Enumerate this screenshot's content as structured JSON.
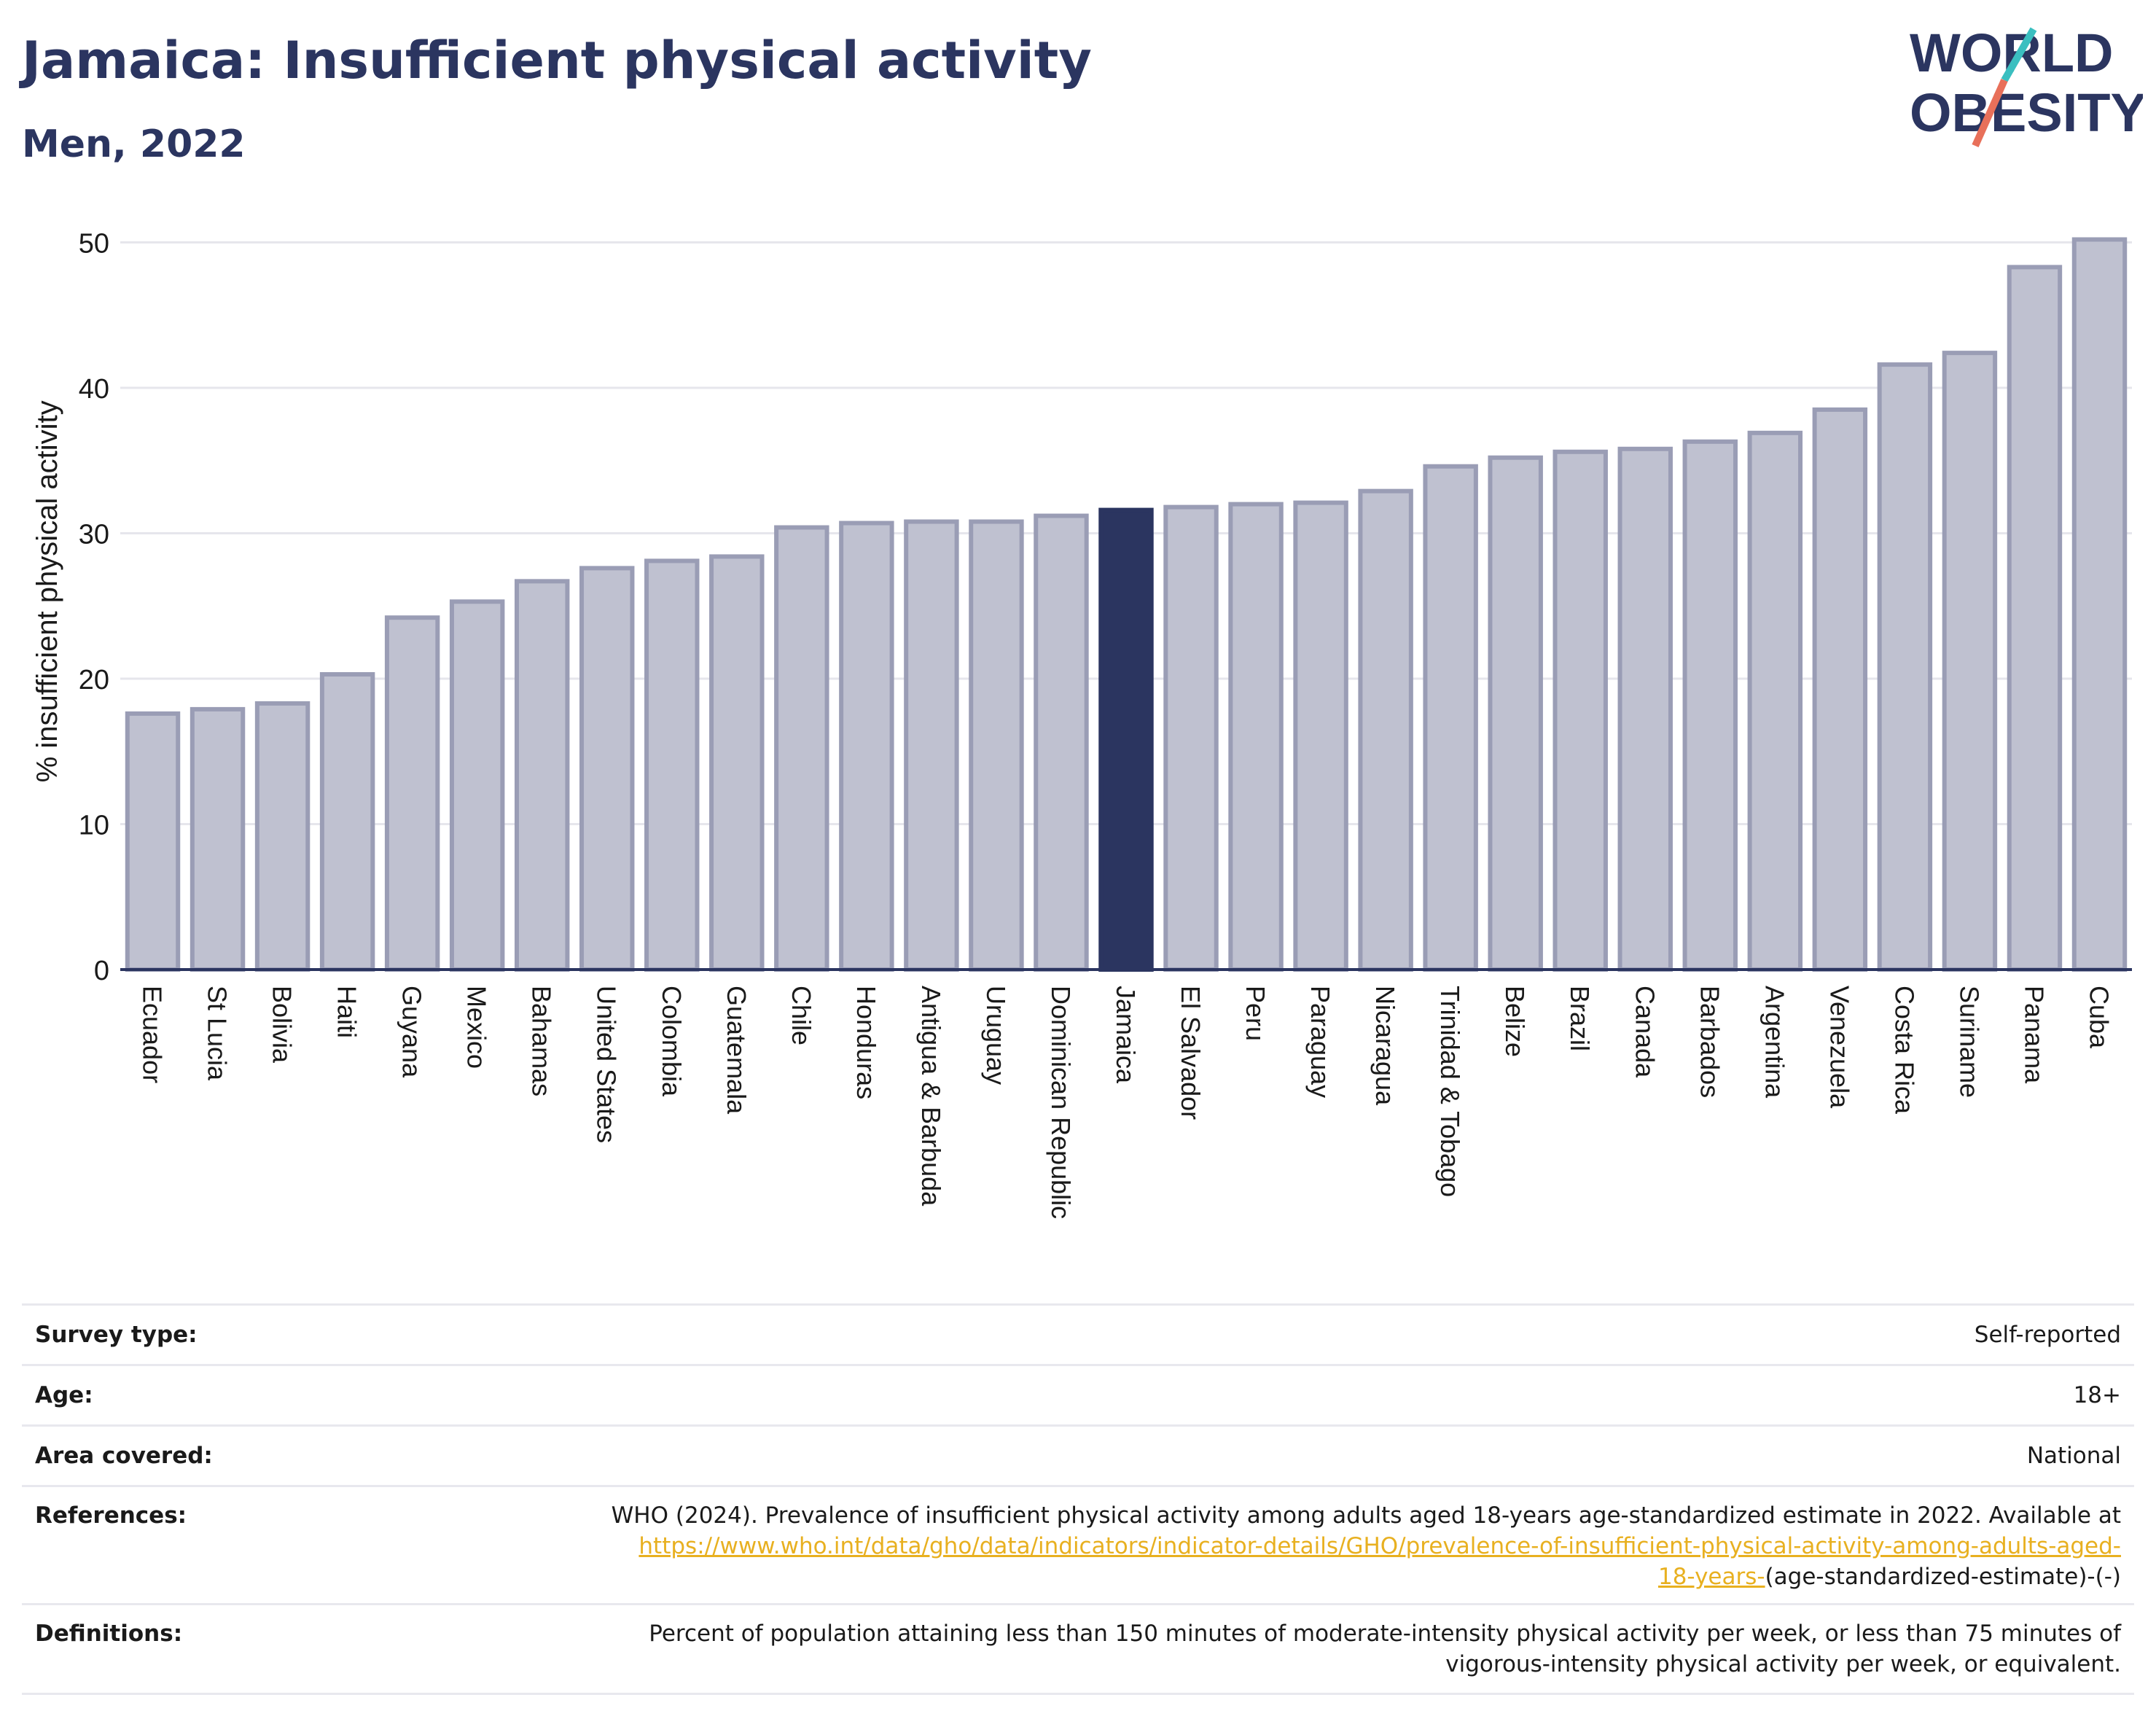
{
  "header": {
    "title": "Jamaica: Insufficient physical activity",
    "subtitle": "Men, 2022",
    "logo_line1": "WORLD",
    "logo_line2": "OBESITY"
  },
  "colors": {
    "highlight": "#2b3560",
    "bar_fill": "#bfc1d0",
    "bar_stroke": "#9a9db5",
    "link": "#e8b020",
    "logo_teal": "#3bbfc0",
    "logo_red": "#e8705a"
  },
  "chart_data": {
    "type": "bar",
    "title": "Jamaica: Insufficient physical activity",
    "subtitle": "Men, 2022",
    "xlabel": "",
    "ylabel": "% insufficient physical activity",
    "ylim": [
      0,
      52
    ],
    "yticks": [
      0,
      10,
      20,
      30,
      40,
      50
    ],
    "grid": true,
    "highlight": "Jamaica",
    "categories": [
      "Ecuador",
      "St Lucia",
      "Bolivia",
      "Haiti",
      "Guyana",
      "Mexico",
      "Bahamas",
      "United States",
      "Colombia",
      "Guatemala",
      "Chile",
      "Honduras",
      "Antigua & Barbuda",
      "Uruguay",
      "Dominican Republic",
      "Jamaica",
      "El Salvador",
      "Peru",
      "Paraguay",
      "Nicaragua",
      "Trinidad & Tobago",
      "Belize",
      "Brazil",
      "Canada",
      "Barbados",
      "Argentina",
      "Venezuela",
      "Costa Rica",
      "Suriname",
      "Panama",
      "Cuba"
    ],
    "values": [
      17.6,
      17.9,
      18.3,
      20.3,
      24.2,
      25.3,
      26.7,
      27.6,
      28.1,
      28.4,
      30.4,
      30.7,
      30.8,
      30.8,
      31.2,
      31.6,
      31.8,
      32.0,
      32.1,
      32.9,
      34.6,
      35.2,
      35.6,
      35.8,
      36.3,
      36.9,
      38.5,
      41.6,
      42.4,
      48.3,
      50.2
    ]
  },
  "info": {
    "survey_type_label": "Survey type:",
    "survey_type_value": "Self-reported",
    "age_label": "Age:",
    "age_value": "18+",
    "area_label": "Area covered:",
    "area_value": "National",
    "references_label": "References:",
    "references_text": "WHO (2024). Prevalence of insufficient physical activity among adults aged 18-years age-standardized estimate in 2022. Available at",
    "references_link_1": "https://www.who.int/data/gho/data/indicators/indicator-details/GHO/prevalence-of-insufficient-physical-activity-among-adults-aged-",
    "references_link_2": "18-years-",
    "references_tail": "(age-standardized-estimate)-(-)",
    "definitions_label": "Definitions:",
    "definitions_line1": "Percent of population attaining less than 150 minutes of moderate-intensity physical activity per week, or less than 75 minutes of",
    "definitions_line2": "vigorous-intensity physical activity per week, or equivalent."
  }
}
